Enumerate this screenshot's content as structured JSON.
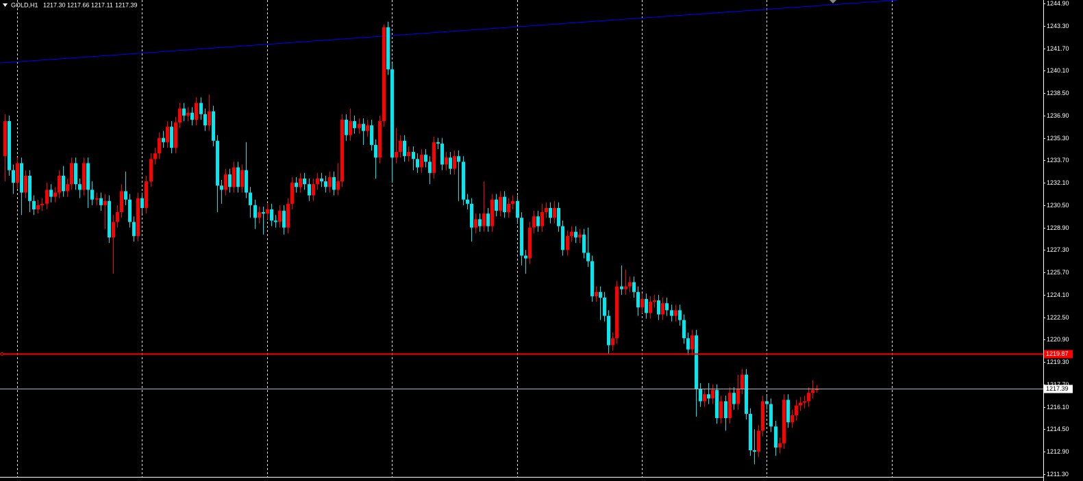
{
  "chart_data": {
    "type": "candlestick",
    "header": {
      "symbol": "GOLD,H1",
      "quotes": [
        "1217.30",
        "1217.66",
        "1217.11",
        "1217.39"
      ]
    },
    "up_color": "#ff0000",
    "down_color": "#00e8f0",
    "xlim": [
      -1.11,
      249.39
    ],
    "xgrid": [
      3,
      33,
      63,
      93,
      123,
      153,
      183,
      213
    ],
    "ylim": [
      1211.1,
      1245.15
    ],
    "yticks": [
      {
        "value": 1244.9,
        "label": "1244.90"
      },
      {
        "value": 1243.3,
        "label": "1243.30"
      },
      {
        "value": 1241.7,
        "label": "1241.70"
      },
      {
        "value": 1240.1,
        "label": "1240.10"
      },
      {
        "value": 1238.5,
        "label": "1238.50"
      },
      {
        "value": 1236.9,
        "label": "1236.90"
      },
      {
        "value": 1235.3,
        "label": "1235.30"
      },
      {
        "value": 1233.7,
        "label": "1233.70"
      },
      {
        "value": 1232.1,
        "label": "1232.10"
      },
      {
        "value": 1230.5,
        "label": "1230.50"
      },
      {
        "value": 1228.9,
        "label": "1228.90"
      },
      {
        "value": 1227.3,
        "label": "1227.30"
      },
      {
        "value": 1225.7,
        "label": "1225.70"
      },
      {
        "value": 1224.1,
        "label": "1224.10"
      },
      {
        "value": 1222.5,
        "label": "1222.50"
      },
      {
        "value": 1220.9,
        "label": "1220.90"
      },
      {
        "value": 1219.3,
        "label": "1219.30"
      },
      {
        "value": 1217.7,
        "label": "1217.70"
      },
      {
        "value": 1216.1,
        "label": "1216.10"
      },
      {
        "value": 1214.5,
        "label": "1214.50"
      },
      {
        "value": 1212.9,
        "label": "1212.90"
      },
      {
        "value": 1211.3,
        "label": "1211.30"
      }
    ],
    "trendline": {
      "color": "#0000ff",
      "x": [
        -1.11,
        214.3
      ],
      "y": [
        1240.65,
        1245.14
      ]
    },
    "levels": [
      {
        "value": 1219.87,
        "label": "1219.87",
        "color": "#ff0000"
      },
      {
        "value": 1217.39,
        "label": "1217.39",
        "color": "#b0b8c8"
      }
    ],
    "open": [
      1234.0,
      1236.5,
      1233.0,
      1232.1,
      1233.5,
      1231.4,
      1232.6,
      1230.8,
      1230.2,
      1230.5,
      1230.6,
      1231.6,
      1231.1,
      1231.4,
      1232.6,
      1231.5,
      1232.0,
      1233.5,
      1232.0,
      1231.6,
      1233.5,
      1231.6,
      1230.9,
      1231.0,
      1230.5,
      1230.8,
      1228.2,
      1229.3,
      1230.0,
      1231.5,
      1230.9,
      1229.3,
      1228.3,
      1231.0,
      1230.3,
      1232.2,
      1233.8,
      1234.2,
      1235.3,
      1235.0,
      1236.1,
      1234.6,
      1236.4,
      1237.4,
      1236.9,
      1237.1,
      1236.6,
      1237.8,
      1237.0,
      1236.2,
      1237.2,
      1235.1,
      1231.9,
      1231.6,
      1232.7,
      1231.8,
      1233.2,
      1231.8,
      1233.0,
      1231.4,
      1230.5,
      1229.6,
      1230.0,
      1229.9,
      1230.2,
      1229.4,
      1229.3,
      1230.1,
      1228.9,
      1230.6,
      1232.1,
      1231.8,
      1232.4,
      1232.0,
      1231.2,
      1232.0,
      1232.4,
      1232.2,
      1231.8,
      1232.5,
      1231.6,
      1232.2,
      1236.6,
      1235.5,
      1236.5,
      1236.0,
      1236.3,
      1235.8,
      1236.2,
      1234.8,
      1233.9,
      1236.5,
      1243.2,
      1240.2,
      1233.9,
      1234.3,
      1235.1,
      1234.0,
      1234.3,
      1233.8,
      1233.2,
      1234.1,
      1233.6,
      1232.8,
      1235.0,
      1234.9,
      1233.4,
      1233.9,
      1233.1,
      1234.0,
      1233.6,
      1230.9,
      1230.6,
      1228.9,
      1229.5,
      1229.0,
      1229.9,
      1229.0,
      1230.9,
      1230.1,
      1231.1,
      1230.0,
      1230.6,
      1230.8,
      1229.6,
      1226.9,
      1226.7,
      1228.9,
      1229.7,
      1229.0,
      1230.0,
      1230.3,
      1229.6,
      1230.3,
      1229.0,
      1227.3,
      1228.3,
      1228.6,
      1228.2,
      1228.4,
      1227.1,
      1226.5,
      1224.0,
      1224.3,
      1223.9,
      1222.6,
      1220.5,
      1221.0,
      1224.7,
      1224.5,
      1224.7,
      1225.0,
      1224.3,
      1223.2,
      1223.8,
      1222.8,
      1223.6,
      1223.7,
      1222.7,
      1223.5,
      1223.0,
      1222.6,
      1223.0,
      1222.3,
      1221.0,
      1220.2,
      1221.2,
      1217.4,
      1216.5,
      1217.0,
      1216.7,
      1217.3,
      1215.3,
      1216.5,
      1215.3,
      1217.1,
      1216.3,
      1217.4,
      1218.4,
      1215.6,
      1213.0,
      1212.9,
      1214.4,
      1216.5,
      1216.3,
      1214.7,
      1213.2,
      1213.5,
      1216.6,
      1215.0,
      1215.5,
      1216.2,
      1216.4,
      1216.5,
      1217.1,
      1217.3
    ],
    "high": [
      1237.0,
      1236.9,
      1233.4,
      1233.9,
      1233.9,
      1233.0,
      1233.0,
      1231.2,
      1230.9,
      1231.0,
      1232.1,
      1232.0,
      1231.8,
      1233.0,
      1233.3,
      1232.4,
      1233.9,
      1233.9,
      1232.4,
      1233.9,
      1233.9,
      1232.2,
      1231.4,
      1231.4,
      1231.3,
      1231.2,
      1229.8,
      1230.5,
      1232.0,
      1232.9,
      1231.3,
      1229.7,
      1231.4,
      1231.4,
      1232.6,
      1234.2,
      1234.6,
      1235.7,
      1235.8,
      1236.5,
      1236.5,
      1236.8,
      1237.8,
      1237.8,
      1237.5,
      1237.5,
      1238.2,
      1238.2,
      1237.4,
      1238.4,
      1237.6,
      1235.5,
      1232.3,
      1233.1,
      1233.1,
      1233.6,
      1233.6,
      1233.4,
      1235.0,
      1231.8,
      1230.9,
      1230.4,
      1230.4,
      1230.6,
      1230.6,
      1229.8,
      1230.5,
      1230.5,
      1231.0,
      1232.5,
      1232.5,
      1232.8,
      1232.8,
      1232.4,
      1232.4,
      1232.8,
      1232.8,
      1232.6,
      1232.9,
      1232.9,
      1233.5,
      1237.0,
      1237.0,
      1237.4,
      1236.9,
      1236.7,
      1236.7,
      1236.6,
      1236.6,
      1235.2,
      1236.9,
      1243.4,
      1243.6,
      1240.6,
      1236.0,
      1235.5,
      1235.5,
      1234.7,
      1234.7,
      1234.2,
      1234.5,
      1234.5,
      1234.0,
      1235.4,
      1235.3,
      1235.3,
      1234.3,
      1234.3,
      1234.4,
      1234.4,
      1234.0,
      1231.3,
      1231.0,
      1229.9,
      1229.9,
      1232.2,
      1230.3,
      1231.3,
      1231.3,
      1231.5,
      1231.5,
      1231.0,
      1231.2,
      1231.2,
      1230.0,
      1227.3,
      1229.3,
      1230.1,
      1230.1,
      1230.6,
      1230.7,
      1230.7,
      1230.8,
      1230.7,
      1229.4,
      1228.7,
      1229.0,
      1229.0,
      1228.8,
      1228.8,
      1228.9,
      1226.9,
      1224.7,
      1224.7,
      1224.3,
      1223.0,
      1221.4,
      1225.1,
      1226.2,
      1225.9,
      1225.4,
      1225.4,
      1224.7,
      1224.2,
      1224.2,
      1224.0,
      1224.1,
      1224.1,
      1223.9,
      1223.9,
      1223.4,
      1223.4,
      1223.4,
      1222.7,
      1221.4,
      1221.6,
      1221.6,
      1217.8,
      1217.4,
      1217.8,
      1217.7,
      1217.7,
      1216.9,
      1216.9,
      1217.5,
      1217.5,
      1218.4,
      1218.8,
      1218.8,
      1216.0,
      1214.5,
      1214.8,
      1216.9,
      1216.9,
      1216.7,
      1215.1,
      1213.9,
      1217.0,
      1217.0,
      1215.9,
      1216.6,
      1216.8,
      1216.9,
      1217.5,
      1218.0,
      1217.66
    ],
    "low": [
      1232.2,
      1232.6,
      1231.3,
      1231.7,
      1229.8,
      1231.0,
      1230.0,
      1229.8,
      1229.9,
      1230.1,
      1230.2,
      1230.7,
      1230.7,
      1231.0,
      1231.1,
      1231.1,
      1231.6,
      1231.6,
      1231.0,
      1231.2,
      1230.3,
      1230.5,
      1230.5,
      1230.1,
      1228.8,
      1227.8,
      1225.6,
      1228.9,
      1229.6,
      1230.5,
      1228.9,
      1227.9,
      1227.9,
      1229.9,
      1229.9,
      1231.8,
      1233.4,
      1233.8,
      1234.6,
      1234.6,
      1234.2,
      1234.2,
      1236.0,
      1236.5,
      1236.5,
      1236.2,
      1236.2,
      1236.6,
      1235.8,
      1235.8,
      1234.7,
      1230.0,
      1230.6,
      1231.2,
      1231.4,
      1231.4,
      1231.4,
      1231.4,
      1231.0,
      1229.6,
      1228.8,
      1229.2,
      1228.4,
      1229.5,
      1229.0,
      1228.9,
      1228.9,
      1228.4,
      1228.5,
      1230.2,
      1231.4,
      1231.4,
      1231.6,
      1230.8,
      1230.8,
      1231.6,
      1231.8,
      1231.4,
      1231.4,
      1231.2,
      1231.2,
      1231.8,
      1235.1,
      1235.1,
      1235.6,
      1235.6,
      1234.8,
      1235.4,
      1234.4,
      1232.4,
      1233.5,
      1236.1,
      1239.8,
      1232.1,
      1233.5,
      1233.9,
      1233.6,
      1233.6,
      1233.0,
      1232.8,
      1232.8,
      1233.2,
      1232.0,
      1232.4,
      1234.5,
      1233.0,
      1233.0,
      1232.7,
      1232.7,
      1230.8,
      1230.5,
      1230.2,
      1227.9,
      1228.5,
      1228.6,
      1228.6,
      1228.6,
      1228.6,
      1229.7,
      1229.7,
      1229.6,
      1229.6,
      1230.2,
      1229.2,
      1226.2,
      1225.6,
      1226.3,
      1228.5,
      1228.6,
      1228.6,
      1229.6,
      1229.2,
      1229.2,
      1228.6,
      1226.9,
      1226.9,
      1227.9,
      1227.8,
      1227.8,
      1226.7,
      1226.1,
      1223.6,
      1223.6,
      1222.3,
      1222.2,
      1219.9,
      1220.1,
      1220.6,
      1224.1,
      1224.1,
      1224.3,
      1223.9,
      1222.6,
      1222.8,
      1222.4,
      1222.4,
      1223.2,
      1222.3,
      1222.3,
      1222.6,
      1222.2,
      1222.2,
      1221.9,
      1220.6,
      1219.8,
      1219.8,
      1215.4,
      1216.1,
      1216.1,
      1216.3,
      1216.3,
      1214.9,
      1214.9,
      1214.4,
      1214.9,
      1215.9,
      1215.9,
      1217.0,
      1215.2,
      1212.6,
      1212.0,
      1212.5,
      1214.0,
      1215.9,
      1214.3,
      1212.6,
      1212.8,
      1213.1,
      1214.6,
      1214.6,
      1215.1,
      1215.8,
      1216.0,
      1216.1,
      1216.7,
      1217.11
    ],
    "close": [
      1236.5,
      1233.0,
      1232.1,
      1233.5,
      1231.4,
      1232.6,
      1230.8,
      1230.2,
      1230.5,
      1230.6,
      1231.6,
      1231.1,
      1231.4,
      1232.6,
      1231.5,
      1232.0,
      1233.5,
      1232.0,
      1231.6,
      1233.5,
      1231.6,
      1230.9,
      1231.0,
      1230.5,
      1230.8,
      1228.2,
      1229.3,
      1230.0,
      1231.5,
      1230.9,
      1229.3,
      1228.3,
      1231.0,
      1230.3,
      1232.2,
      1233.8,
      1234.2,
      1235.3,
      1235.0,
      1236.1,
      1234.6,
      1236.4,
      1237.4,
      1236.9,
      1237.1,
      1236.6,
      1237.8,
      1237.0,
      1236.2,
      1237.2,
      1235.1,
      1231.9,
      1231.6,
      1232.7,
      1231.8,
      1233.2,
      1231.8,
      1233.0,
      1231.4,
      1230.5,
      1229.6,
      1230.0,
      1229.9,
      1230.2,
      1229.4,
      1229.3,
      1230.1,
      1228.9,
      1230.6,
      1232.1,
      1231.8,
      1232.4,
      1232.0,
      1231.2,
      1232.0,
      1232.4,
      1232.2,
      1231.8,
      1232.5,
      1231.6,
      1232.2,
      1236.6,
      1235.5,
      1236.5,
      1236.0,
      1236.3,
      1235.8,
      1236.2,
      1234.8,
      1233.9,
      1236.5,
      1243.2,
      1240.2,
      1233.9,
      1234.3,
      1235.1,
      1234.0,
      1234.3,
      1233.8,
      1233.2,
      1234.1,
      1233.6,
      1232.8,
      1235.0,
      1234.9,
      1233.4,
      1233.9,
      1233.1,
      1234.0,
      1233.6,
      1230.9,
      1230.6,
      1228.9,
      1229.5,
      1229.0,
      1229.9,
      1229.0,
      1230.9,
      1230.1,
      1231.1,
      1230.0,
      1230.6,
      1230.8,
      1229.6,
      1226.9,
      1226.7,
      1228.9,
      1229.7,
      1229.0,
      1230.0,
      1230.3,
      1229.6,
      1230.3,
      1229.0,
      1227.3,
      1228.3,
      1228.6,
      1228.2,
      1228.4,
      1227.1,
      1226.5,
      1224.0,
      1224.3,
      1223.9,
      1222.6,
      1220.5,
      1221.0,
      1224.7,
      1224.5,
      1224.7,
      1225.0,
      1224.3,
      1223.2,
      1223.8,
      1222.8,
      1223.6,
      1223.7,
      1222.7,
      1223.5,
      1223.0,
      1222.6,
      1223.0,
      1222.3,
      1221.0,
      1220.2,
      1221.2,
      1217.4,
      1216.5,
      1217.0,
      1216.7,
      1217.3,
      1215.3,
      1216.5,
      1215.3,
      1217.1,
      1216.3,
      1217.4,
      1218.4,
      1215.6,
      1213.0,
      1212.9,
      1214.4,
      1216.5,
      1216.3,
      1214.7,
      1213.2,
      1213.5,
      1216.6,
      1215.0,
      1215.5,
      1216.2,
      1216.4,
      1216.5,
      1217.1,
      1217.3,
      1217.39
    ]
  }
}
